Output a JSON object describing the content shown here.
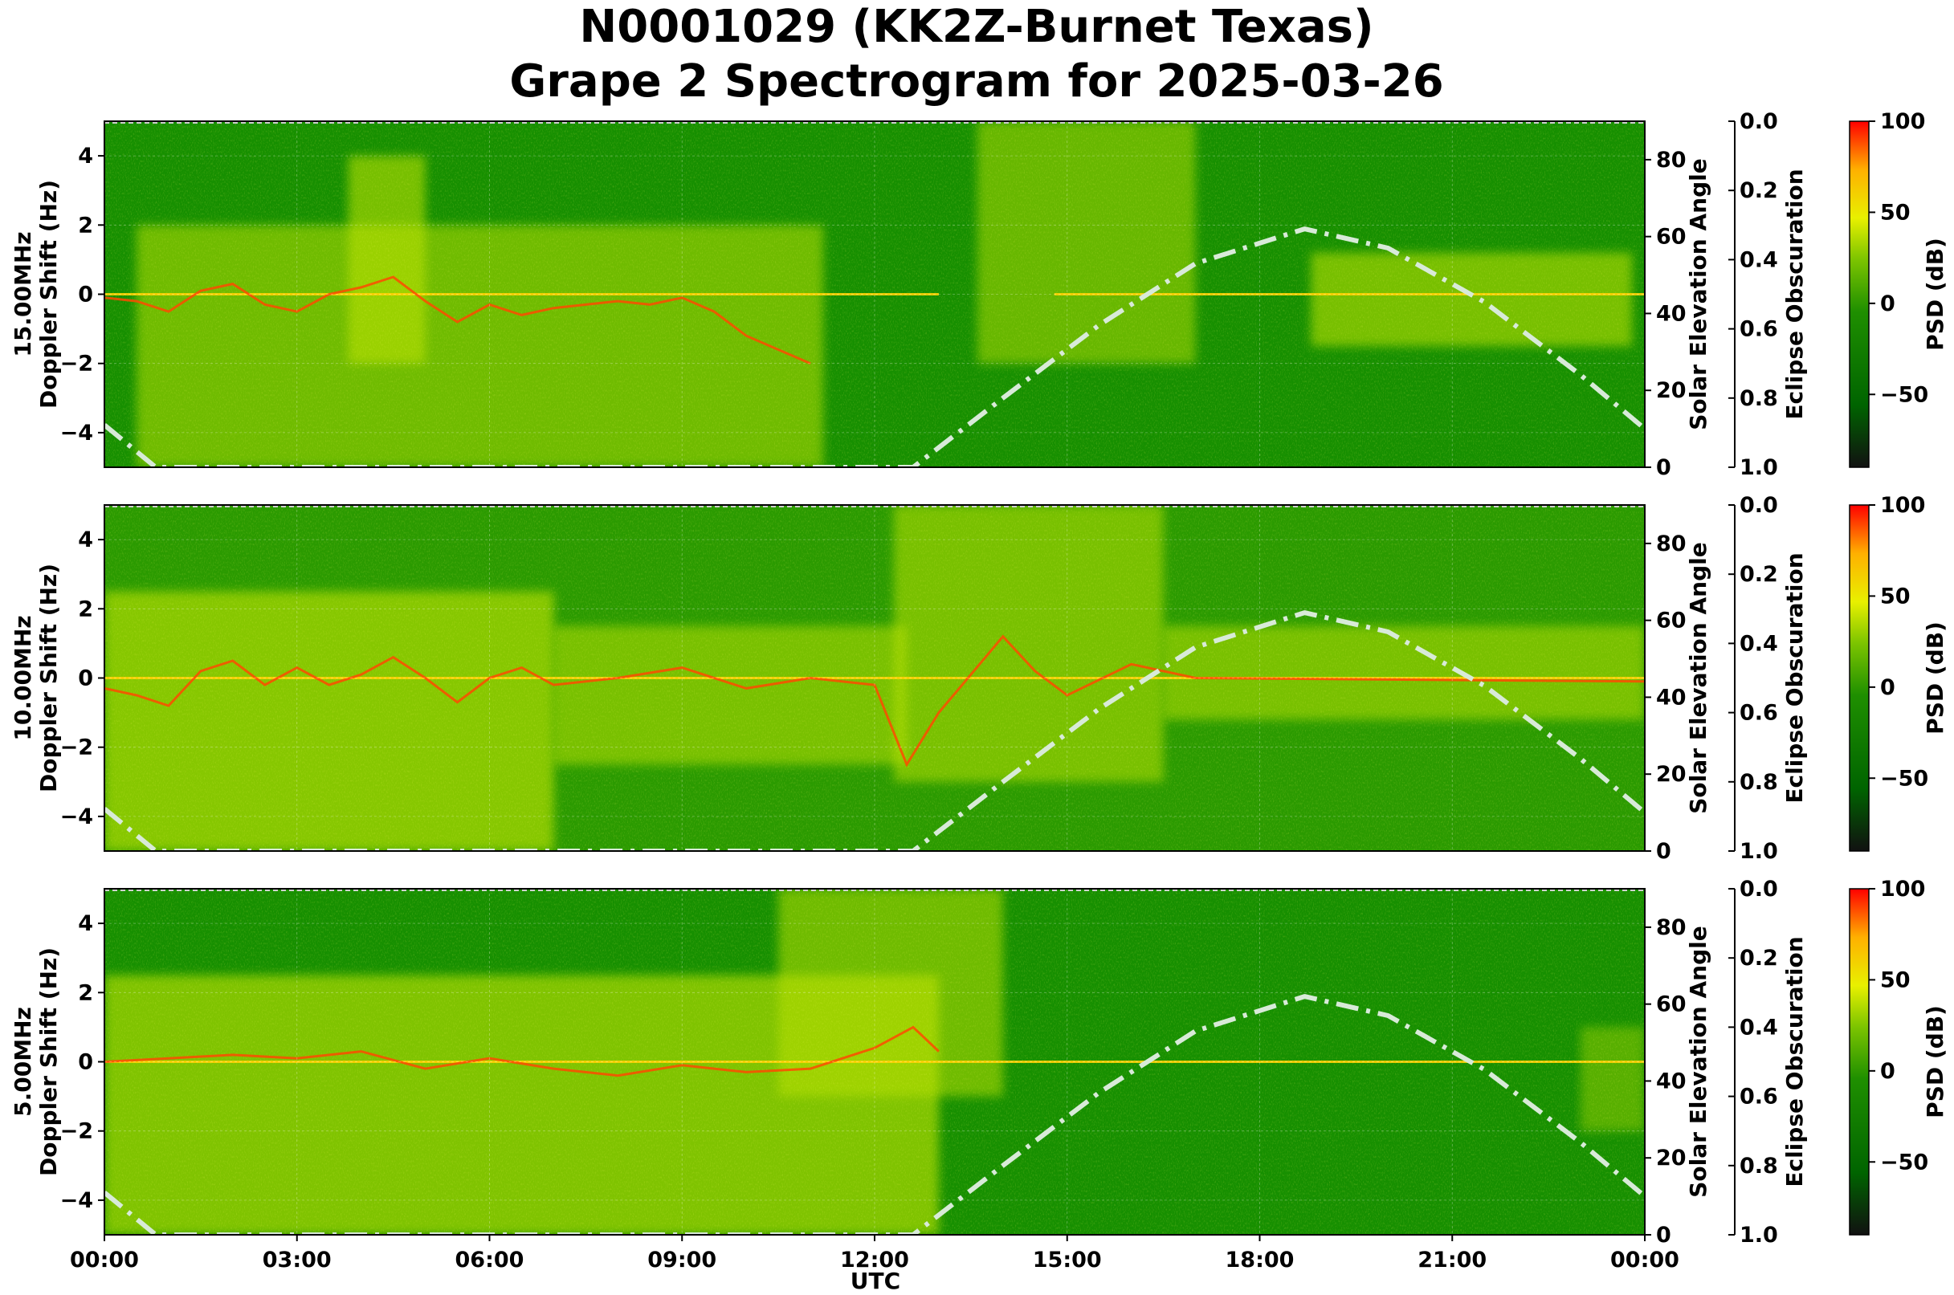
{
  "chart_data": {
    "type": "heatmap",
    "title_line1": "N0001029 (KK2Z-Burnet Texas)",
    "title_line2": "Grape 2 Spectrogram for 2025-03-26",
    "xlabel": "UTC",
    "x_ticks": [
      "00:00",
      "03:00",
      "06:00",
      "09:00",
      "12:00",
      "15:00",
      "18:00",
      "21:00",
      "00:00"
    ],
    "x_range_hours": [
      0,
      24
    ],
    "y_ticks": [
      "4",
      "2",
      "0",
      "−2",
      "−4"
    ],
    "y_range": [
      -5,
      5
    ],
    "elev_ticks": [
      "80",
      "60",
      "40",
      "20",
      "0"
    ],
    "elev_range": [
      0,
      90
    ],
    "elev_label": "Solar Elevation Angle",
    "obsc_ticks": [
      "0.0",
      "0.2",
      "0.4",
      "0.6",
      "0.8",
      "1.0"
    ],
    "obsc_label": "Eclipse Obscuration",
    "cbar_ticks": [
      "100",
      "50",
      "0",
      "−50"
    ],
    "cbar_label": "PSD (dB)",
    "cbar_range": [
      -90,
      100
    ],
    "colormap": [
      "#111111",
      "#006400",
      "#2e8b00",
      "#7cc400",
      "#e8f000",
      "#ffb000",
      "#ff0000"
    ],
    "panels": [
      {
        "label_line1": "15.00MHz",
        "label_line2": "Doppler Shift (Hz)",
        "bg_color": "#168f00",
        "trace": [
          {
            "t": 0.0,
            "f": -0.1
          },
          {
            "t": 0.5,
            "f": -0.2
          },
          {
            "t": 1.0,
            "f": -0.5
          },
          {
            "t": 1.5,
            "f": 0.1
          },
          {
            "t": 2.0,
            "f": 0.3
          },
          {
            "t": 2.5,
            "f": -0.3
          },
          {
            "t": 3.0,
            "f": -0.5
          },
          {
            "t": 3.5,
            "f": 0.0
          },
          {
            "t": 4.0,
            "f": 0.2
          },
          {
            "t": 4.5,
            "f": 0.5
          },
          {
            "t": 5.0,
            "f": -0.2
          },
          {
            "t": 5.5,
            "f": -0.8
          },
          {
            "t": 6.0,
            "f": -0.3
          },
          {
            "t": 6.5,
            "f": -0.6
          },
          {
            "t": 7.0,
            "f": -0.4
          },
          {
            "t": 7.5,
            "f": -0.3
          },
          {
            "t": 8.0,
            "f": -0.2
          },
          {
            "t": 8.5,
            "f": -0.3
          },
          {
            "t": 9.0,
            "f": -0.1
          },
          {
            "t": 9.5,
            "f": -0.5
          },
          {
            "t": 10.0,
            "f": -1.2
          },
          {
            "t": 10.5,
            "f": -1.6
          },
          {
            "t": 11.0,
            "f": -2.0
          }
        ],
        "carrier_segments": [
          [
            0,
            13
          ],
          [
            14.8,
            24
          ]
        ],
        "bright_regions": [
          {
            "t0": 0.5,
            "t1": 11.2,
            "f0": -5,
            "f1": 2,
            "level": 0.55
          },
          {
            "t0": 3.8,
            "t1": 5.0,
            "f0": -2,
            "f1": 4,
            "level": 0.6
          },
          {
            "t0": 13.6,
            "t1": 17.0,
            "f0": -2,
            "f1": 5,
            "level": 0.5
          },
          {
            "t0": 18.8,
            "t1": 23.8,
            "f0": -1.5,
            "f1": 1.2,
            "level": 0.6
          }
        ],
        "solar_elevation": [
          {
            "t": 0,
            "e": 11
          },
          {
            "t": 0.8,
            "e": 0
          },
          {
            "t": 12.6,
            "e": 0
          },
          {
            "t": 14,
            "e": 18
          },
          {
            "t": 15.5,
            "e": 37
          },
          {
            "t": 17,
            "e": 53
          },
          {
            "t": 18.7,
            "e": 62
          },
          {
            "t": 20,
            "e": 57
          },
          {
            "t": 21.5,
            "e": 43
          },
          {
            "t": 23,
            "e": 24
          },
          {
            "t": 24,
            "e": 10
          }
        ]
      },
      {
        "label_line1": "10.00MHz",
        "label_line2": "Doppler Shift (Hz)",
        "bg_color": "#2a9a00",
        "trace": [
          {
            "t": 0.0,
            "f": -0.3
          },
          {
            "t": 0.5,
            "f": -0.5
          },
          {
            "t": 1.0,
            "f": -0.8
          },
          {
            "t": 1.5,
            "f": 0.2
          },
          {
            "t": 2.0,
            "f": 0.5
          },
          {
            "t": 2.5,
            "f": -0.2
          },
          {
            "t": 3.0,
            "f": 0.3
          },
          {
            "t": 3.5,
            "f": -0.2
          },
          {
            "t": 4.0,
            "f": 0.1
          },
          {
            "t": 4.5,
            "f": 0.6
          },
          {
            "t": 5.0,
            "f": 0.0
          },
          {
            "t": 5.5,
            "f": -0.7
          },
          {
            "t": 6.0,
            "f": 0.0
          },
          {
            "t": 6.5,
            "f": 0.3
          },
          {
            "t": 7.0,
            "f": -0.2
          },
          {
            "t": 8.0,
            "f": 0.0
          },
          {
            "t": 9.0,
            "f": 0.3
          },
          {
            "t": 10.0,
            "f": -0.3
          },
          {
            "t": 11.0,
            "f": 0.0
          },
          {
            "t": 12.0,
            "f": -0.2
          },
          {
            "t": 12.5,
            "f": -2.5
          },
          {
            "t": 13.0,
            "f": -1.0
          },
          {
            "t": 14.0,
            "f": 1.2
          },
          {
            "t": 14.5,
            "f": 0.2
          },
          {
            "t": 15.0,
            "f": -0.5
          },
          {
            "t": 16.0,
            "f": 0.4
          },
          {
            "t": 17.0,
            "f": 0.0
          },
          {
            "t": 24.0,
            "f": -0.1
          }
        ],
        "carrier_segments": [
          [
            0,
            24
          ]
        ],
        "bright_regions": [
          {
            "t0": 0.0,
            "t1": 7.0,
            "f0": -5,
            "f1": 2.5,
            "level": 0.65
          },
          {
            "t0": 7.0,
            "t1": 12.5,
            "f0": -2.5,
            "f1": 1.5,
            "level": 0.55
          },
          {
            "t0": 12.3,
            "t1": 16.5,
            "f0": -3,
            "f1": 5,
            "level": 0.55
          },
          {
            "t0": 16.5,
            "t1": 24.0,
            "f0": -1.2,
            "f1": 1.5,
            "level": 0.55
          }
        ],
        "solar_elevation": [
          {
            "t": 0,
            "e": 11
          },
          {
            "t": 0.8,
            "e": 0
          },
          {
            "t": 12.6,
            "e": 0
          },
          {
            "t": 14,
            "e": 18
          },
          {
            "t": 15.5,
            "e": 37
          },
          {
            "t": 17,
            "e": 53
          },
          {
            "t": 18.7,
            "e": 62
          },
          {
            "t": 20,
            "e": 57
          },
          {
            "t": 21.5,
            "e": 43
          },
          {
            "t": 23,
            "e": 24
          },
          {
            "t": 24,
            "e": 10
          }
        ]
      },
      {
        "label_line1": "5.00MHz",
        "label_line2": "Doppler Shift (Hz)",
        "bg_color": "#168f00",
        "trace": [
          {
            "t": 0.0,
            "f": 0.0
          },
          {
            "t": 1.0,
            "f": 0.1
          },
          {
            "t": 2.0,
            "f": 0.2
          },
          {
            "t": 3.0,
            "f": 0.1
          },
          {
            "t": 4.0,
            "f": 0.3
          },
          {
            "t": 5.0,
            "f": -0.2
          },
          {
            "t": 6.0,
            "f": 0.1
          },
          {
            "t": 7.0,
            "f": -0.2
          },
          {
            "t": 8.0,
            "f": -0.4
          },
          {
            "t": 9.0,
            "f": -0.1
          },
          {
            "t": 10.0,
            "f": -0.3
          },
          {
            "t": 11.0,
            "f": -0.2
          },
          {
            "t": 12.0,
            "f": 0.4
          },
          {
            "t": 12.6,
            "f": 1.0
          },
          {
            "t": 13.0,
            "f": 0.3
          }
        ],
        "carrier_segments": [
          [
            0,
            24
          ]
        ],
        "bright_regions": [
          {
            "t0": 0.0,
            "t1": 13.0,
            "f0": -5,
            "f1": 2.5,
            "level": 0.65
          },
          {
            "t0": 10.5,
            "t1": 14.0,
            "f0": -1,
            "f1": 5,
            "level": 0.55
          },
          {
            "t0": 23.0,
            "t1": 24.0,
            "f0": -2,
            "f1": 1,
            "level": 0.4
          }
        ],
        "solar_elevation": [
          {
            "t": 0,
            "e": 11
          },
          {
            "t": 0.8,
            "e": 0
          },
          {
            "t": 12.6,
            "e": 0
          },
          {
            "t": 14,
            "e": 18
          },
          {
            "t": 15.5,
            "e": 37
          },
          {
            "t": 17,
            "e": 53
          },
          {
            "t": 18.7,
            "e": 62
          },
          {
            "t": 20,
            "e": 57
          },
          {
            "t": 21.5,
            "e": 43
          },
          {
            "t": 23,
            "e": 24
          },
          {
            "t": 24,
            "e": 10
          }
        ]
      }
    ]
  }
}
